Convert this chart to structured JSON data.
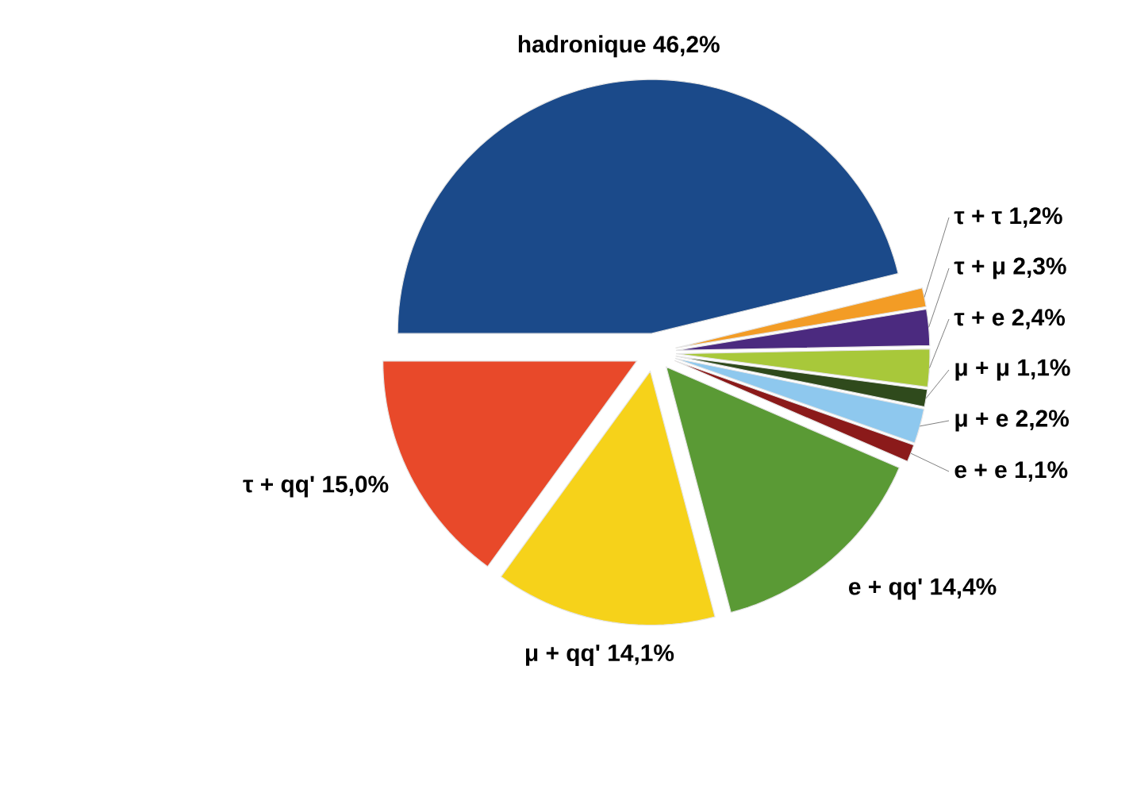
{
  "chart_data": {
    "type": "pie",
    "categories": [
      "hadronique",
      "τ + τ",
      "τ + μ",
      "τ + e",
      "μ + μ",
      "μ + e",
      "e + e",
      "e + qq'",
      "μ + qq'",
      "τ + qq'"
    ],
    "values": [
      46.2,
      1.2,
      2.3,
      2.4,
      1.1,
      2.2,
      1.1,
      14.4,
      14.1,
      15.0
    ],
    "value_labels": [
      "46,2%",
      "1,2%",
      "2,3%",
      "2,4%",
      "1,1%",
      "2,2%",
      "1,1%",
      "14,4%",
      "14,1%",
      "15,0%"
    ],
    "colors": [
      "#1b4a8a",
      "#f39c25",
      "#4b2a7f",
      "#a8c83a",
      "#2f4a1c",
      "#8ec8ee",
      "#8b1a1a",
      "#5a9a35",
      "#f6d21a",
      "#e8492a"
    ],
    "legend": false
  }
}
